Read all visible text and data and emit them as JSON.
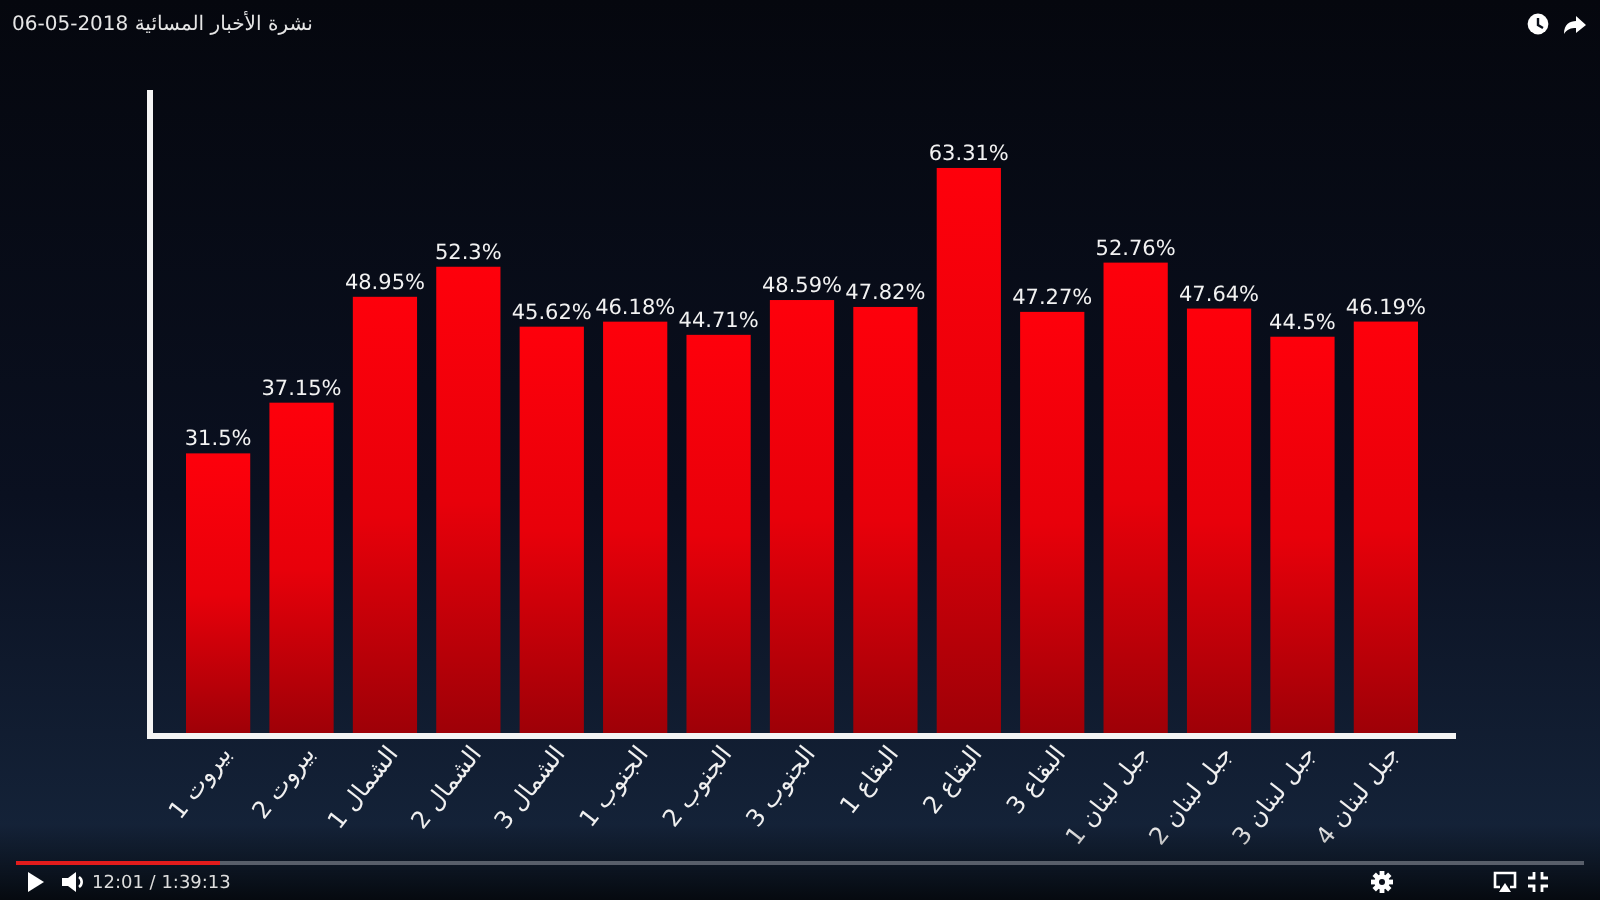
{
  "chart_data": {
    "type": "bar",
    "title": "نشرة الأخبار المسائية 2018-05-06",
    "categories": [
      "بيروت 1",
      "بيروت 2",
      "الشمال 1",
      "الشمال 2",
      "الشمال 3",
      "الجنوب 1",
      "الجنوب 2",
      "الجنوب 3",
      "البقاع 1",
      "البقاع 2",
      "البقاع 3",
      "جبل لبنان 1",
      "جبل لبنان 2",
      "جبل لبنان 3",
      "جبل لبنان 4"
    ],
    "values": [
      31.5,
      37.15,
      48.95,
      52.3,
      45.62,
      46.18,
      44.71,
      48.59,
      47.82,
      63.31,
      47.27,
      52.76,
      47.64,
      44.5,
      46.19
    ],
    "value_labels": [
      "31.5%",
      "37.15%",
      "48.95%",
      "52.3%",
      "45.62%",
      "46.18%",
      "44.71%",
      "48.59%",
      "47.82%",
      "63.31%",
      "47.27%",
      "52.76%",
      "47.64%",
      "44.5%",
      "46.19%"
    ],
    "color": "#e8000a",
    "ylim": [
      0,
      72
    ],
    "tick_labels": "x",
    "annotations": [
      "12:01 / 1:39:13"
    ]
  }
}
